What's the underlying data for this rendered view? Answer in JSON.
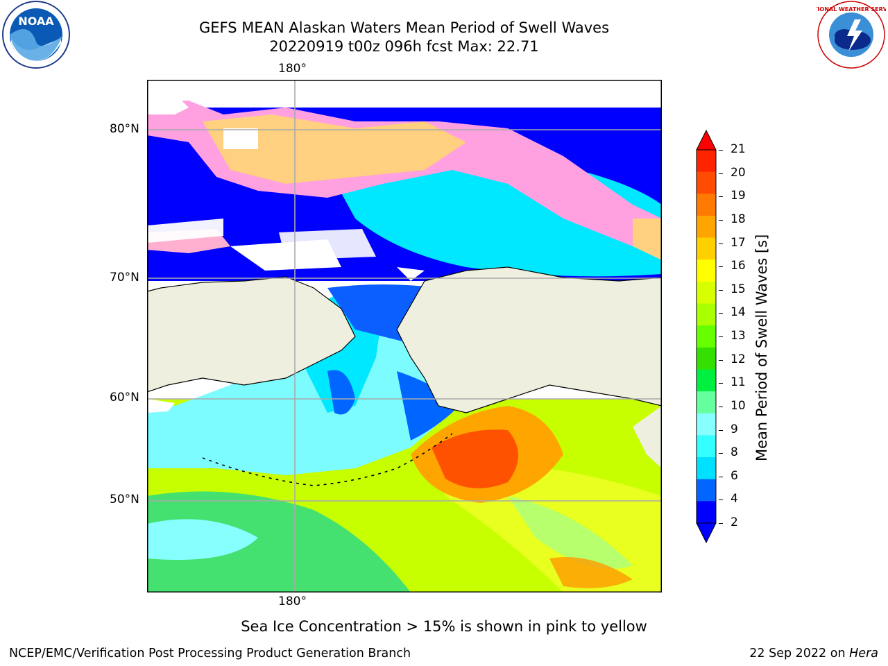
{
  "header": {
    "title_line1": "GEFS MEAN Alaskan Waters Mean Period of Swell Waves",
    "title_line2": "20220919 t00z 096h fcst   Max: 22.71"
  },
  "logos": {
    "left": "noara-logo",
    "right": "nws-logo",
    "nws_text": "NATIONAL WEATHER SERVICE",
    "noaa_text": "NOAA"
  },
  "map": {
    "lon_label_top": "180°",
    "lon_label_bottom": "180°",
    "lat_labels": [
      "80°N",
      "70°N",
      "60°N",
      "50°N"
    ]
  },
  "colorbar": {
    "label": "Mean Period of Swell Waves [s]",
    "ticks": [
      "21",
      "20",
      "19",
      "18",
      "17",
      "16",
      "15",
      "14",
      "13",
      "12",
      "11",
      "10",
      "9",
      "8",
      "6",
      "4",
      "2"
    ],
    "colors": [
      "#ff2400",
      "#ff4c00",
      "#ff7a00",
      "#ffa500",
      "#ffd000",
      "#ffff00",
      "#d8ff00",
      "#aaff00",
      "#66ff00",
      "#33e000",
      "#00f040",
      "#66ffa0",
      "#88ffff",
      "#33ffff",
      "#00e0ff",
      "#0066ff",
      "#0000ff"
    ]
  },
  "footer": {
    "ice_note": "Sea Ice Concentration > 15% is shown in pink to yellow",
    "credit_left": "NCEP/EMC/Verification Post Processing Product Generation Branch",
    "credit_right_date": "22 Sep 2022 on",
    "credit_right_machine": "Hera"
  }
}
